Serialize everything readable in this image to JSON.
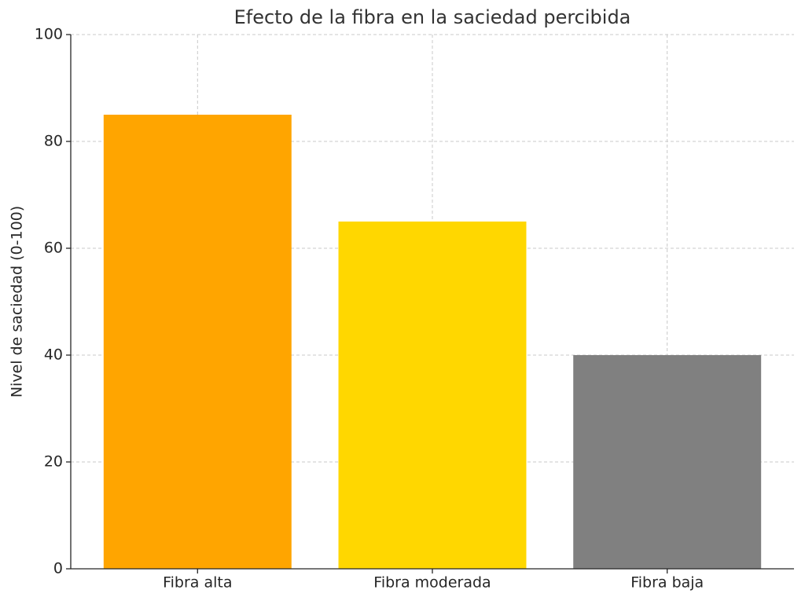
{
  "chart_data": {
    "type": "bar",
    "title": "Efecto de la fibra en la saciedad percibida",
    "y_label": "Nivel de saciedad (0-100)",
    "categories": [
      "Fibra alta",
      "Fibra moderada",
      "Fibra baja"
    ],
    "values": [
      85,
      65,
      40
    ],
    "colors": [
      "#FFA500",
      "#FFD700",
      "#808080"
    ],
    "ylim": [
      0,
      100
    ],
    "yticks": [
      0,
      20,
      40,
      60,
      80,
      100
    ],
    "grid": true
  }
}
